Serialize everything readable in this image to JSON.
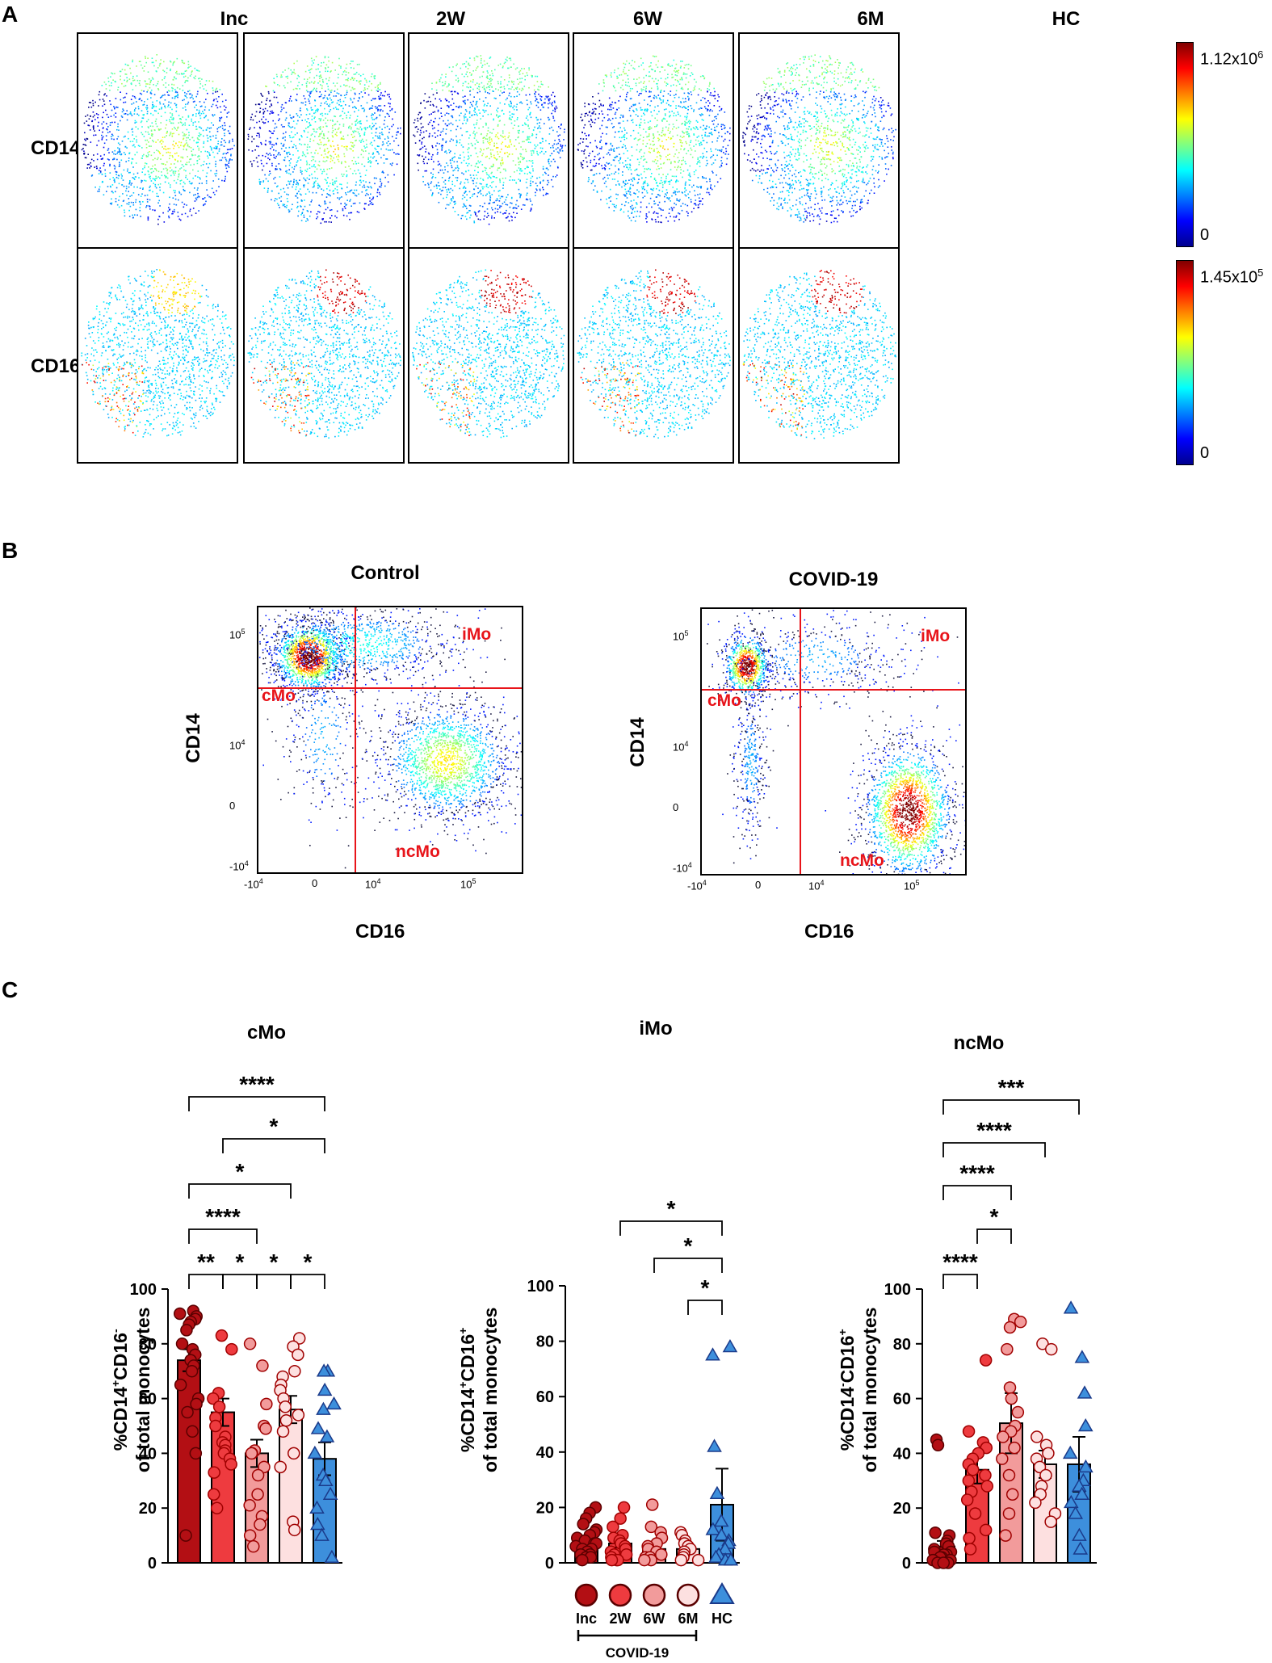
{
  "panels": {
    "a": "A",
    "b": "B",
    "c": "C"
  },
  "panel_a": {
    "columns": [
      "Inc",
      "2W",
      "6W",
      "6M",
      "HC"
    ],
    "rows": [
      {
        "label": "CD14",
        "cbar_max": "1.12x10",
        "cbar_exp": "6",
        "cbar_min": "0"
      },
      {
        "label": "CD16",
        "cbar_max": "1.45x10",
        "cbar_exp": "5",
        "cbar_min": "0"
      }
    ]
  },
  "panel_b": {
    "plots": [
      {
        "title": "Control",
        "xlabel": "CD16",
        "ylabel": "CD14"
      },
      {
        "title": "COVID-19",
        "xlabel": "CD16",
        "ylabel": "CD14"
      }
    ],
    "gates": {
      "cmo": "cMo",
      "imo": "iMo",
      "ncmo": "ncMo"
    },
    "yticks": [
      {
        "base": "10",
        "exp": "5"
      },
      {
        "base": "10",
        "exp": "4"
      },
      {
        "base": "0",
        "exp": ""
      },
      {
        "base": "-10",
        "exp": "4"
      }
    ],
    "xticks": [
      {
        "base": "-10",
        "exp": "4"
      },
      {
        "base": "0",
        "exp": ""
      },
      {
        "base": "10",
        "exp": "4"
      },
      {
        "base": "10",
        "exp": "5"
      }
    ]
  },
  "panel_c_labels": {
    "cmo_ylabel": {
      "pre": "%CD14",
      "sup1": "+",
      "mid": "CD16",
      "sup2": "-",
      "line2": "of total monocytes"
    },
    "imo_ylabel": {
      "pre": "%CD14",
      "sup1": "+",
      "mid": "CD16",
      "sup2": "+",
      "line2": "of total monocytes"
    },
    "ncmo_ylabel": {
      "pre": "%CD14",
      "sup1": "-",
      "mid": "CD16",
      "sup2": "+",
      "line2": "of total monocytes"
    },
    "legend_group": "COVID-19"
  },
  "colors": {
    "inc": "#b30f14",
    "w2": "#ee3b3f",
    "w6": "#f29b9b",
    "m6": "#fde0e0",
    "hc": "#3d8fdc",
    "gate": "#e8141a"
  },
  "chart_data": [
    {
      "type": "bar",
      "title": "cMo",
      "categories": [
        "Inc",
        "2W",
        "6W",
        "6M",
        "HC"
      ],
      "values": [
        74,
        55,
        40,
        56,
        38
      ],
      "errors": [
        4,
        5,
        5,
        5,
        6
      ],
      "ylim": [
        0,
        100
      ],
      "yticks": [
        0,
        20,
        40,
        60,
        80,
        100
      ],
      "points": [
        [
          92,
          91,
          90,
          89,
          88,
          87,
          85,
          80,
          78,
          76,
          74,
          72,
          70,
          65,
          60,
          58,
          55,
          48,
          40,
          10
        ],
        [
          83,
          78,
          62,
          60,
          57,
          53,
          50,
          46,
          44,
          43,
          41,
          40,
          38,
          36,
          33,
          25,
          20
        ],
        [
          80,
          72,
          58,
          50,
          49,
          41,
          40,
          40,
          35,
          32,
          25,
          21,
          17,
          14,
          10,
          6
        ],
        [
          82,
          79,
          76,
          70,
          68,
          65,
          63,
          60,
          57,
          54,
          52,
          48,
          40,
          35,
          15,
          12
        ],
        [
          70,
          70,
          63,
          58,
          56,
          49,
          46,
          40,
          32,
          30,
          25,
          20,
          14,
          10,
          2
        ]
      ],
      "significance": [
        {
          "from": 0,
          "to": 4,
          "label": "****"
        },
        {
          "from": 1,
          "to": 4,
          "label": "*"
        },
        {
          "from": 0,
          "to": 3,
          "label": "*"
        },
        {
          "from": 0,
          "to": 2,
          "label": "****"
        },
        {
          "from": 0,
          "to": 1,
          "label": "**"
        },
        {
          "from": 1,
          "to": 2,
          "label": "*"
        },
        {
          "from": 2,
          "to": 3,
          "label": "*"
        },
        {
          "from": 3,
          "to": 4,
          "label": "*"
        }
      ]
    },
    {
      "type": "bar",
      "title": "iMo",
      "categories": [
        "Inc",
        "2W",
        "6W",
        "6M",
        "HC"
      ],
      "values": [
        7,
        7,
        5,
        5,
        21
      ],
      "errors": [
        1,
        1.5,
        1.5,
        1,
        13
      ],
      "ylim": [
        0,
        100
      ],
      "yticks": [
        0,
        20,
        40,
        60,
        80,
        100
      ],
      "points": [
        [
          20,
          18,
          16,
          14,
          12,
          11,
          10,
          9,
          8,
          7,
          7,
          6,
          5,
          5,
          4,
          3,
          3,
          2,
          2,
          1
        ],
        [
          20,
          16,
          13,
          10,
          9,
          8,
          7,
          6,
          5,
          4,
          3,
          3,
          2,
          1,
          1,
          1
        ],
        [
          21,
          13,
          11,
          9,
          7,
          6,
          5,
          4,
          3,
          2,
          2,
          1,
          1
        ],
        [
          11,
          10,
          8,
          7,
          6,
          5,
          4,
          3,
          2,
          1,
          1
        ],
        [
          78,
          75,
          42,
          25,
          15,
          12,
          10,
          8,
          7,
          5,
          3,
          2,
          1,
          1
        ]
      ],
      "significance": [
        {
          "from": 1,
          "to": 4,
          "label": "*"
        },
        {
          "from": 2,
          "to": 4,
          "label": "*"
        },
        {
          "from": 3,
          "to": 4,
          "label": "*"
        }
      ]
    },
    {
      "type": "bar",
      "title": "ncMo",
      "categories": [
        "Inc",
        "2W",
        "6W",
        "6M",
        "HC"
      ],
      "values": [
        6,
        34,
        51,
        36,
        36
      ],
      "errors": [
        2,
        5,
        11,
        5,
        10
      ],
      "ylim": [
        0,
        100
      ],
      "yticks": [
        0,
        20,
        40,
        60,
        80,
        100
      ],
      "points": [
        [
          45,
          43,
          11,
          10,
          8,
          7,
          6,
          5,
          4,
          4,
          3,
          3,
          2,
          2,
          1,
          1,
          1,
          0,
          0,
          0
        ],
        [
          74,
          48,
          44,
          42,
          40,
          38,
          36,
          34,
          32,
          30,
          28,
          26,
          23,
          18,
          12,
          9,
          5
        ],
        [
          89,
          88,
          86,
          78,
          64,
          60,
          55,
          50,
          48,
          46,
          42,
          38,
          32,
          25,
          18,
          10
        ],
        [
          80,
          78,
          46,
          43,
          40,
          38,
          35,
          32,
          28,
          25,
          22,
          18,
          15
        ],
        [
          93,
          75,
          62,
          50,
          40,
          35,
          30,
          28,
          25,
          22,
          18,
          10,
          5
        ]
      ],
      "significance": [
        {
          "from": 0,
          "to": 4,
          "label": "***"
        },
        {
          "from": 0,
          "to": 3,
          "label": "****"
        },
        {
          "from": 0,
          "to": 2,
          "label": "****"
        },
        {
          "from": 1,
          "to": 2,
          "label": "*"
        },
        {
          "from": 0,
          "to": 1,
          "label": "****"
        }
      ]
    }
  ]
}
